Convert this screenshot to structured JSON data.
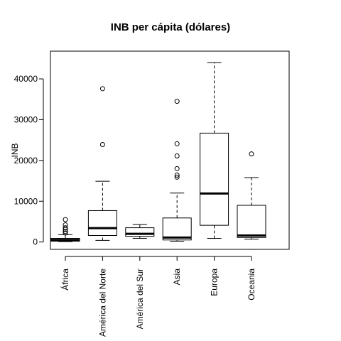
{
  "chart_data": {
    "type": "boxplot",
    "title": "INB per cápita (dólares)",
    "ylabel": "INB",
    "xlabel": "",
    "ylim": [
      -1800,
      46800
    ],
    "yticks": [
      0,
      10000,
      20000,
      30000,
      40000
    ],
    "ytick_labels": [
      "0",
      "10000",
      "20000",
      "30000",
      "40000"
    ],
    "grid": false,
    "categories": [
      "África",
      "América del Norte",
      "América del Sur",
      "Asia",
      "Europa",
      "Oceania"
    ],
    "boxes": [
      {
        "category": "África",
        "min": 100,
        "q1": 200,
        "median": 500,
        "q3": 900,
        "max": 1800,
        "outliers": [
          2200,
          2600,
          3100,
          3500,
          4200,
          5500
        ]
      },
      {
        "category": "América del Norte",
        "min": 400,
        "q1": 1600,
        "median": 3400,
        "q3": 7700,
        "max": 14900,
        "outliers": [
          23900,
          37600
        ]
      },
      {
        "category": "América del Sur",
        "min": 900,
        "q1": 1400,
        "median": 2000,
        "q3": 3500,
        "max": 4300,
        "outliers": []
      },
      {
        "category": "Asia",
        "min": 200,
        "q1": 500,
        "median": 1100,
        "q3": 5900,
        "max": 12000,
        "outliers": [
          15900,
          16400,
          18000,
          21100,
          24100,
          34500
        ]
      },
      {
        "category": "Europa",
        "min": 900,
        "q1": 4100,
        "median": 11900,
        "q3": 26700,
        "max": 44000,
        "outliers": []
      },
      {
        "category": "Oceania",
        "min": 700,
        "q1": 1100,
        "median": 1600,
        "q3": 9000,
        "max": 15800,
        "outliers": [
          21600
        ]
      }
    ]
  }
}
